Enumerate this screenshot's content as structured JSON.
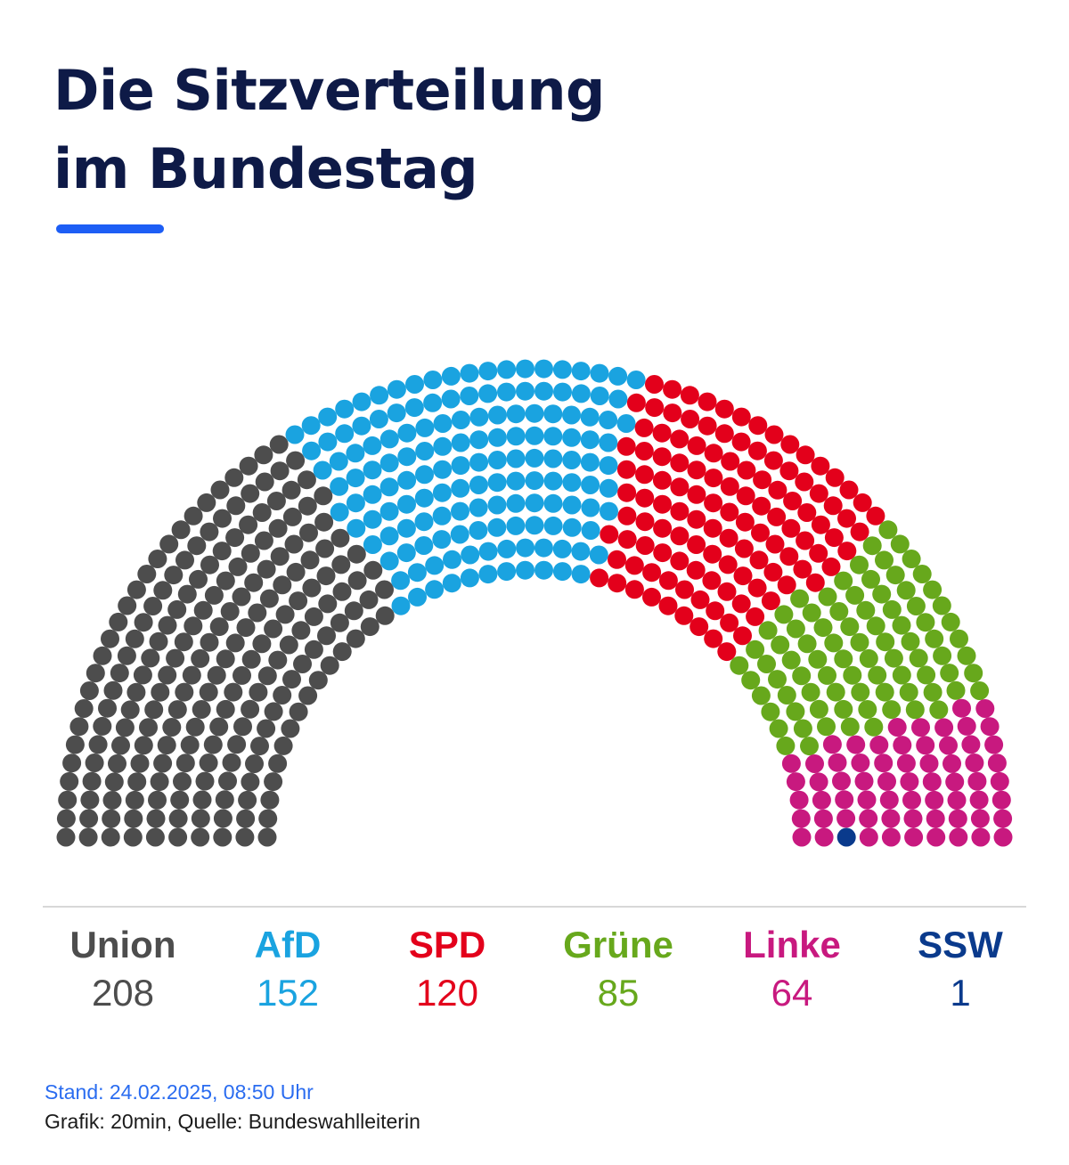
{
  "header": {
    "title_line1": "Die Sitzverteilung",
    "title_line2": "im Bundestag",
    "accent_color": "#1d5ef5"
  },
  "chart_data": {
    "type": "hemicycle",
    "total_seats": 630,
    "categories": [
      "Union",
      "AfD",
      "SPD",
      "Grüne",
      "Linke",
      "SSW"
    ],
    "values": [
      208,
      152,
      120,
      85,
      64,
      1
    ],
    "colors": [
      "#4d4d4d",
      "#1aa3e0",
      "#e3001b",
      "#67a81c",
      "#c8197f",
      "#0a3a8c"
    ],
    "legend_position": "bottom"
  },
  "legend": [
    {
      "name": "Union",
      "count": "208",
      "color": "#4d4d4d"
    },
    {
      "name": "AfD",
      "count": "152",
      "color": "#1aa3e0"
    },
    {
      "name": "SPD",
      "count": "120",
      "color": "#e3001b"
    },
    {
      "name": "Grüne",
      "count": "85",
      "color": "#67a81c"
    },
    {
      "name": "Linke",
      "count": "64",
      "color": "#c8197f"
    },
    {
      "name": "SSW",
      "count": "1",
      "color": "#0a3a8c"
    }
  ],
  "footer": {
    "stand": "Stand: 24.02.2025, 08:50 Uhr",
    "source": "Grafik: 20min, Quelle: Bundeswahlleiterin"
  }
}
